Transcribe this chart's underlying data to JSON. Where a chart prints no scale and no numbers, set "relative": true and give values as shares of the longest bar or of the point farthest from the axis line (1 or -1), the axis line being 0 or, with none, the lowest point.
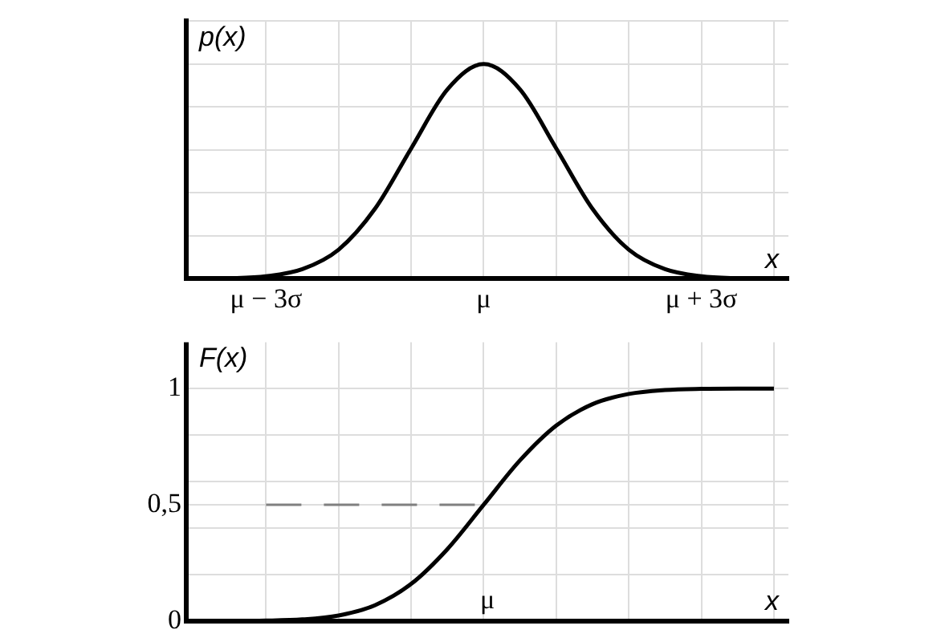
{
  "chart_data": [
    {
      "type": "line",
      "relative": true,
      "xlabel": "x",
      "ylabel": "p(x)",
      "grid": true,
      "marker": "none",
      "line_style": "solid",
      "xlim": [
        -4.1,
        4.2
      ],
      "xticks": [
        {
          "value": -3,
          "label": "μ − 3σ"
        },
        {
          "value": -2,
          "label": null
        },
        {
          "value": -1,
          "label": null
        },
        {
          "value": 0,
          "label": "μ"
        },
        {
          "value": 1,
          "label": null
        },
        {
          "value": 2,
          "label": null
        },
        {
          "value": 3,
          "label": "μ + 3σ"
        },
        {
          "value": 4,
          "label": null
        }
      ],
      "x": [
        -4,
        -3.5,
        -3,
        -2.5,
        -2,
        -1.5,
        -1,
        -0.5,
        0,
        0.5,
        1,
        1.5,
        2,
        2.5,
        3,
        3.5,
        4
      ],
      "series": [
        {
          "color": "#000000",
          "values": [
            0,
            0.002,
            0.011,
            0.044,
            0.135,
            0.325,
            0.607,
            0.882,
            1,
            0.882,
            0.607,
            0.325,
            0.135,
            0.044,
            0.011,
            0.002,
            0
          ]
        }
      ]
    },
    {
      "type": "line",
      "xlabel": "x",
      "ylabel": "F(x)",
      "grid": true,
      "marker": "none",
      "tick_labels": "y",
      "annotations": [
        "μ"
      ],
      "ref_lines": [
        {
          "axis": "x",
          "value": -4.1,
          "color": "#000000"
        }
      ],
      "xlim": [
        -4.1,
        4.2
      ],
      "xticks": [
        {
          "value": -3,
          "label": null
        },
        {
          "value": -2,
          "label": null
        },
        {
          "value": -1,
          "label": null
        },
        {
          "value": 0,
          "label": null
        },
        {
          "value": 1,
          "label": null
        },
        {
          "value": 2,
          "label": null
        },
        {
          "value": 3,
          "label": null
        },
        {
          "value": 4,
          "label": null
        }
      ],
      "ylim": [
        0,
        1.2
      ],
      "yticks": [
        {
          "value": 0,
          "label": "0"
        },
        {
          "value": 0.2,
          "label": null
        },
        {
          "value": 0.4,
          "label": null
        },
        {
          "value": 0.5,
          "label": "0,5"
        },
        {
          "value": 0.6,
          "label": null
        },
        {
          "value": 0.8,
          "label": null
        },
        {
          "value": 1,
          "label": "1"
        }
      ],
      "x": [
        -4,
        -3.5,
        -3,
        -2.5,
        -2,
        -1.5,
        -1,
        -0.5,
        0,
        0.5,
        1,
        1.5,
        2,
        2.5,
        3,
        3.5,
        4
      ],
      "series": [
        {
          "color": "#000000",
          "line_style": "solid",
          "values": [
            0,
            0,
            0.001,
            0.006,
            0.023,
            0.067,
            0.159,
            0.309,
            0.5,
            0.691,
            0.841,
            0.933,
            0.977,
            0.994,
            0.999,
            1,
            1
          ]
        },
        {
          "color": "#808080",
          "line_style": "dashed",
          "x": [
            -3,
            0
          ],
          "values": [
            0.5,
            0.5
          ]
        }
      ]
    }
  ]
}
